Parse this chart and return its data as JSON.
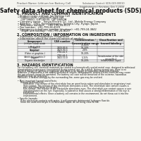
{
  "bg_color": "#f5f5f0",
  "header_top_left": "Product Name: Lithium Ion Battery Cell",
  "header_top_right": "Substance Control: SDS-049-00010\nEstablishment / Revision: Dec.7.2016",
  "title": "Safety data sheet for chemical products (SDS)",
  "section1_title": "1. PRODUCT AND COMPANY IDENTIFICATION",
  "section1_lines": [
    "• Product name: Lithium Ion Battery Cell",
    "• Product code: Cylindrical-type cell",
    "    (18*18650, (18*18500, (18*18450A",
    "• Company name:   Sanyo Electric Co., Ltd., Mobile Energy Company",
    "• Address:   2001, Kamitakamatsu, Sumoto-City, Hyogo, Japan",
    "• Telephone number:    +81-799-24-4111",
    "• Fax number:  +81-799-24-4129",
    "• Emergency telephone number (daytime): +81-799-24-3842",
    "    (Night and holiday): +81-799-24-4129"
  ],
  "section2_title": "2. COMPOSITION / INFORMATION ON INGREDIENTS",
  "section2_sub": "• Substance or preparation: Preparation",
  "section2_sub2": "• Information about the chemical nature of product:",
  "table_headers": [
    "Component",
    "CAS number",
    "Concentration /\nConcentration range",
    "Classification and\nhazard labeling"
  ],
  "table_rows": [
    [
      "Lithium cobalt oxide\n(LiMnCo)O3)",
      "",
      "30-60%",
      ""
    ],
    [
      "Iron",
      "7439-89-6",
      "10-20%",
      ""
    ],
    [
      "Aluminum",
      "7429-90-5",
      "2-6%",
      ""
    ],
    [
      "Graphite\n(Flake or graphite-I\n(Artificial graphite-I)",
      "7782-42-5\n7782-44-2",
      "10-20%",
      ""
    ],
    [
      "Copper",
      "7440-50-8",
      "5-15%",
      "Sensitization of the skin\ngroup No.2"
    ],
    [
      "Organic electrolyte",
      "",
      "10-20%",
      "Inflammable liquid"
    ]
  ],
  "section3_title": "3. HAZARDS IDENTIFICATION",
  "section3_text": [
    "For the battery cell, chemical materials are stored in a hermetically sealed metal case, designed to withstand",
    "temperatures to pressures encountered during normal use. As a result, during normal use, there is no",
    "physical danger of ignition or explosion and there is no danger of hazardous materials leakage.",
    "However, if exposed to a fire added mechanical shocks, decomposed, sealed electro chemical may cause",
    "the gas release cannot be operated. The battery cell case will be breached of the extreme, hazardous",
    "materials may be released.",
    "Moreover, if heated strongly by the surrounding fire, some gas may be emitted.",
    "",
    "• Most important hazard and effects:",
    "    Human health effects:",
    "        Inhalation: The release of the electrolyte has an anesthesia action and stimulates in respiratory tract.",
    "        Skin contact: The release of the electrolyte stimulates a skin. The electrolyte skin contact causes a",
    "        sore and stimulation on the skin.",
    "        Eye contact: The release of the electrolyte stimulates eyes. The electrolyte eye contact causes a sore",
    "        and stimulation on the eye. Especially, a substance that causes a strong inflammation of the eye is",
    "        contained.",
    "        Environmental effects: Since a battery cell remains in the environment, do not throw out it into the",
    "        environment.",
    "",
    "• Specific hazards:",
    "    If the electrolyte contacts with water, it will generate detrimental hydrogen fluoride.",
    "    Since the used electrolyte is inflammable liquid, do not bring close to fire."
  ]
}
